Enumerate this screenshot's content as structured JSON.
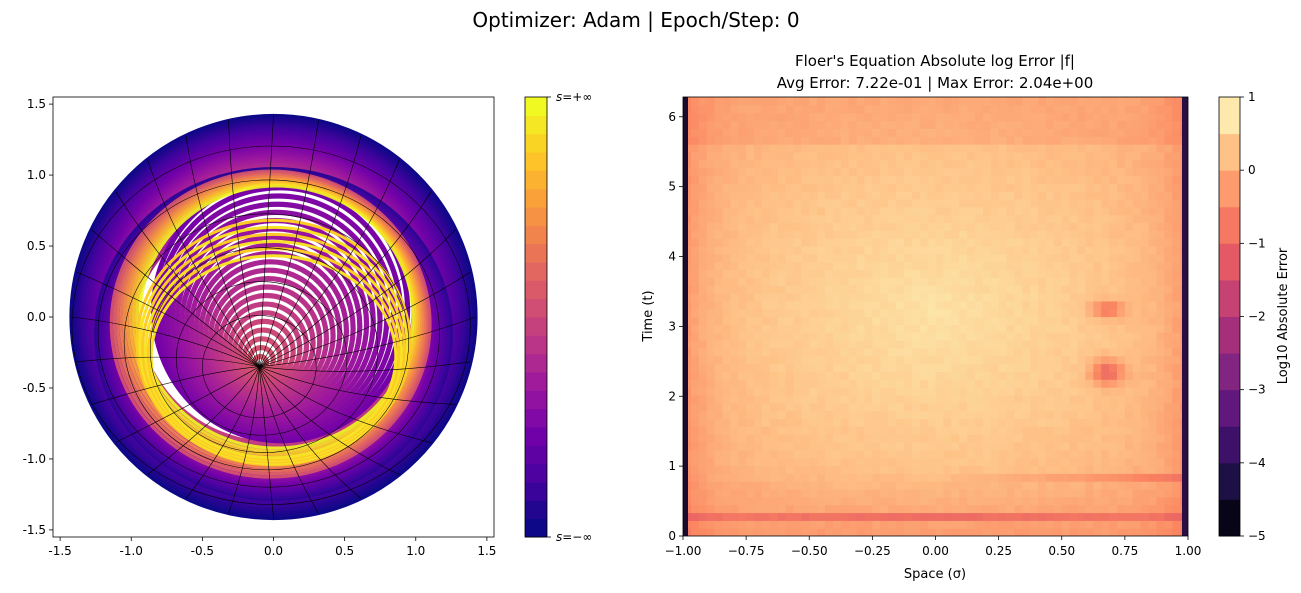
{
  "suptitle": "Optimizer: Adam | Epoch/Step: 0",
  "colors": {
    "plasma": [
      "#0d0887",
      "#46039f",
      "#7201a8",
      "#9c179e",
      "#bd3786",
      "#d8576b",
      "#ed7953",
      "#fb9f3a",
      "#fdca26",
      "#f0f921"
    ],
    "magma": [
      "#000004",
      "#1c1044",
      "#4f127b",
      "#812581",
      "#b5367a",
      "#e55964",
      "#fb8761",
      "#fec287",
      "#fcfdbf"
    ],
    "heatmap_base": "#fa9b66",
    "heatmap_edge": "#5a1f6e"
  },
  "chart_data": [
    {
      "type": "line",
      "panel": "left",
      "xlim": [
        -1.55,
        1.55
      ],
      "ylim": [
        -1.55,
        1.55
      ],
      "xticks": [
        "-1.5",
        "-1.0",
        "-0.5",
        "0.0",
        "0.5",
        "1.0",
        "1.5"
      ],
      "yticks": [
        "-1.5",
        "-1.0",
        "-0.5",
        "0.0",
        "0.5",
        "1.0",
        "1.5"
      ],
      "outer_circle_radius": 1.42,
      "inner_circle": {
        "center": [
          0.05,
          0.05
        ],
        "radius": 0.92
      },
      "convergence_point": [
        -0.1,
        -0.35
      ],
      "colorbar": {
        "cmap": "plasma",
        "top_label": "s=+∞",
        "bottom_label": "s=−∞",
        "bands": 24
      }
    },
    {
      "type": "heatmap",
      "panel": "right",
      "title_line1": "Floer's Equation Absolute log Error |f|",
      "title_line2": "Avg Error: 7.22e-01 | Max Error: 2.04e+00",
      "xlabel": "Space (σ)",
      "ylabel": "Time (t)",
      "xlim": [
        -1.0,
        1.0
      ],
      "ylim": [
        0,
        6.283
      ],
      "xticks": [
        "−1.00",
        "−0.75",
        "−0.50",
        "−0.25",
        "0.00",
        "0.25",
        "0.50",
        "0.75",
        "1.00"
      ],
      "yticks": [
        "0",
        "1",
        "2",
        "3",
        "4",
        "5",
        "6"
      ],
      "avg_error": 0.722,
      "max_error": 2.04,
      "colorbar": {
        "cmap": "magma",
        "label": "Log10 Absolute Error",
        "range": [
          -5,
          1
        ],
        "ticks": [
          "−5",
          "−4",
          "−3",
          "−2",
          "−1",
          "0",
          "1"
        ]
      }
    }
  ]
}
